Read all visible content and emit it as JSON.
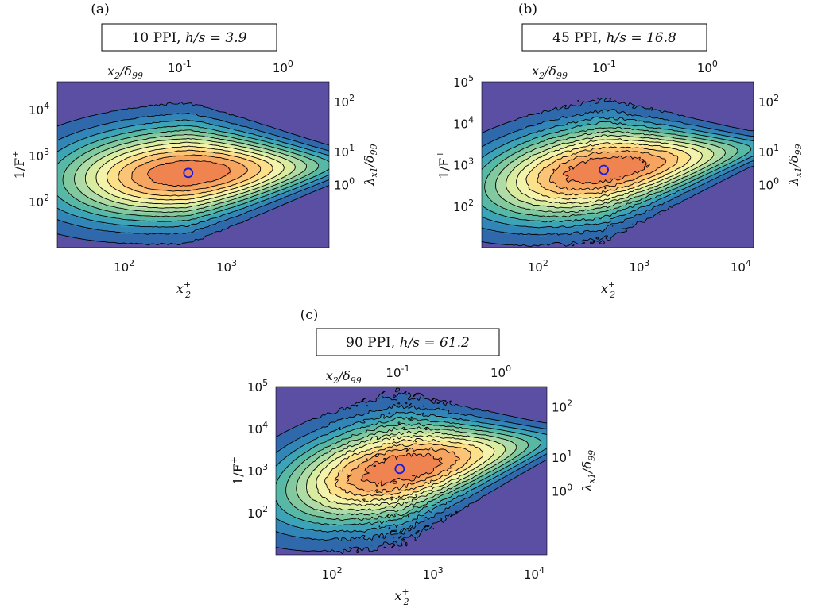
{
  "colors": {
    "background": "#5b4fa3",
    "levels": [
      "#5b4fa3",
      "#2f68ab",
      "#3286b7",
      "#3ca4b6",
      "#57b8a5",
      "#82c99f",
      "#afdba6",
      "#d9ec9f",
      "#f4f3ac",
      "#fde08a",
      "#fcc476",
      "#f5a560",
      "#ef8451"
    ],
    "marker": "#1a1adf",
    "contour_line": "#000000"
  },
  "chart_data": [
    {
      "type": "heatmap",
      "panel_label": "(a)",
      "title": "10 PPI, h/s = 3.9",
      "title_plain": "10 PPI, ",
      "title_math": "h/s = 3.9",
      "xlabel": "x2+",
      "ylabel": "1/F+",
      "top_xlabel": "x2/δ99",
      "right_ylabel": "λx1/δ99",
      "x_scale": "log",
      "y_scale": "log",
      "xlim": [
        20,
        9000
      ],
      "ylim": [
        10,
        40000
      ],
      "xticks": [
        100,
        1000
      ],
      "xticklabels": [
        "10^2",
        "10^3"
      ],
      "yticks": [
        100,
        1000,
        10000
      ],
      "yticklabels": [
        "10^2",
        "10^3",
        "10^4"
      ],
      "top_ticks": [
        0.1,
        1
      ],
      "top_ticklabels": [
        "10^-1",
        "10^0"
      ],
      "right_ticks": [
        1,
        10,
        100
      ],
      "right_ticklabels": [
        "10^0",
        "10^1",
        "10^2"
      ],
      "contour_levels": 13,
      "peak": {
        "x": 380,
        "y": 420
      },
      "spread": {
        "x_left_decades": 1.25,
        "x_right_decades": 1.3,
        "y_decades": 0.95,
        "tilt": 0.12
      },
      "noise": 0.02,
      "blank_above": 40000
    },
    {
      "type": "heatmap",
      "panel_label": "(b)",
      "title": "45 PPI, h/s = 16.8",
      "title_plain": "45 PPI, ",
      "title_math": "h/s = 16.8",
      "xlabel": "x2+",
      "ylabel": "1/F+",
      "top_xlabel": "x2/δ99",
      "right_ylabel": "λx1/δ99",
      "x_scale": "log",
      "y_scale": "log",
      "xlim": [
        25,
        12000
      ],
      "ylim": [
        10,
        100000
      ],
      "xticks": [
        100,
        1000,
        10000
      ],
      "xticklabels": [
        "10^2",
        "10^3",
        "10^4"
      ],
      "yticks": [
        100,
        1000,
        10000,
        100000
      ],
      "yticklabels": [
        "10^2",
        "10^3",
        "10^4",
        "10^5"
      ],
      "top_ticks": [
        0.1,
        1
      ],
      "top_ticklabels": [
        "10^-1",
        "10^0"
      ],
      "right_ticks": [
        1,
        10,
        100
      ],
      "right_ticklabels": [
        "10^0",
        "10^1",
        "10^2"
      ],
      "contour_levels": 13,
      "peak": {
        "x": 400,
        "y": 750
      },
      "spread": {
        "x_left_decades": 1.2,
        "x_right_decades": 1.35,
        "y_decades": 1.05,
        "tilt": 0.35
      },
      "noise": 0.06,
      "blank_above": null
    },
    {
      "type": "heatmap",
      "panel_label": "(c)",
      "title": "90 PPI, h/s = 61.2",
      "title_plain": "90 PPI, ",
      "title_math": "h/s = 61.2",
      "xlabel": "x2+",
      "ylabel": "1/F+",
      "top_xlabel": "x2/δ99",
      "right_ylabel": "λx1/δ99",
      "x_scale": "log",
      "y_scale": "log",
      "xlim": [
        25,
        12000
      ],
      "ylim": [
        10,
        100000
      ],
      "xticks": [
        100,
        1000,
        10000
      ],
      "xticklabels": [
        "10^2",
        "10^3",
        "10^4"
      ],
      "yticks": [
        100,
        1000,
        10000,
        100000
      ],
      "yticklabels": [
        "10^2",
        "10^3",
        "10^4",
        "10^5"
      ],
      "top_ticks": [
        0.1,
        1
      ],
      "top_ticklabels": [
        "10^-1",
        "10^0"
      ],
      "right_ticks": [
        1,
        10,
        100
      ],
      "right_ticklabels": [
        "10^0",
        "10^1",
        "10^2"
      ],
      "contour_levels": 13,
      "peak": {
        "x": 420,
        "y": 1100
      },
      "spread": {
        "x_left_decades": 1.15,
        "x_right_decades": 1.3,
        "y_decades": 1.1,
        "tilt": 0.45
      },
      "noise": 0.09,
      "blank_above": null
    }
  ]
}
